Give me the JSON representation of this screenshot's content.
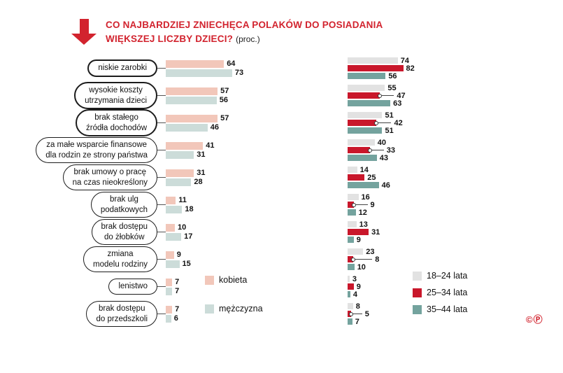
{
  "header": {
    "title_line1": "CO NAJBARDZIEJ ZNIECHĘCA POLAKÓW DO POSIADANIA",
    "title_line2": "WIĘKSZEJ LICZBY DZIECI?",
    "title_suffix": "(proc.)"
  },
  "colors": {
    "accent_red": "#d2232e",
    "kobieta": "#f2c7ba",
    "mezczyzna": "#ccdcd9",
    "age_18_24": "#e2e2e2",
    "age_25_34": "#c9172b",
    "age_35_44": "#74a39e"
  },
  "footer": {
    "copyright": "©Ⓟ"
  },
  "chart_data": {
    "type": "bar",
    "title": "CO NAJBARDZIEJ ZNIECHĘCA POLAKÓW DO POSIADANIA WIĘKSZEJ LICZBY DZIECI? (proc.)",
    "unit": "percent",
    "orientation": "horizontal",
    "xlim": [
      0,
      100
    ],
    "grid": false,
    "categories": [
      "niskie zarobki",
      "wysokie koszty\nutrzymania dzieci",
      "brak stałego\nźródła dochodów",
      "za małe wsparcie finansowe\ndla rodzin ze strony państwa",
      "brak umowy o pracę\nna czas nieokreślony",
      "brak ulg\npodatkowych",
      "brak dostępu\ndo żłobków",
      "zmiana\nmodelu rodziny",
      "lenistwo",
      "brak dostępu\ndo przedszkoli"
    ],
    "emphasized_categories": [
      0,
      1,
      2
    ],
    "gender_chart": {
      "series": [
        {
          "name": "kobieta",
          "color": "#f2c7ba",
          "values": [
            64,
            57,
            57,
            41,
            31,
            11,
            10,
            9,
            7,
            7
          ]
        },
        {
          "name": "mężczyzna",
          "color": "#ccdcd9",
          "values": [
            73,
            56,
            46,
            31,
            28,
            18,
            17,
            15,
            7,
            6
          ]
        }
      ],
      "legend_position": "bottom-middle"
    },
    "age_chart": {
      "series": [
        {
          "name": "18–24 lata",
          "color": "#e2e2e2",
          "values": [
            74,
            55,
            51,
            40,
            14,
            16,
            13,
            23,
            3,
            8
          ]
        },
        {
          "name": "25–34 lata",
          "color": "#c9172b",
          "values": [
            82,
            47,
            42,
            33,
            25,
            9,
            31,
            8,
            9,
            5
          ]
        },
        {
          "name": "35–44 lata",
          "color": "#74a39e",
          "values": [
            56,
            63,
            51,
            43,
            46,
            12,
            9,
            10,
            4,
            7
          ]
        }
      ],
      "legend_position": "bottom-right"
    }
  }
}
